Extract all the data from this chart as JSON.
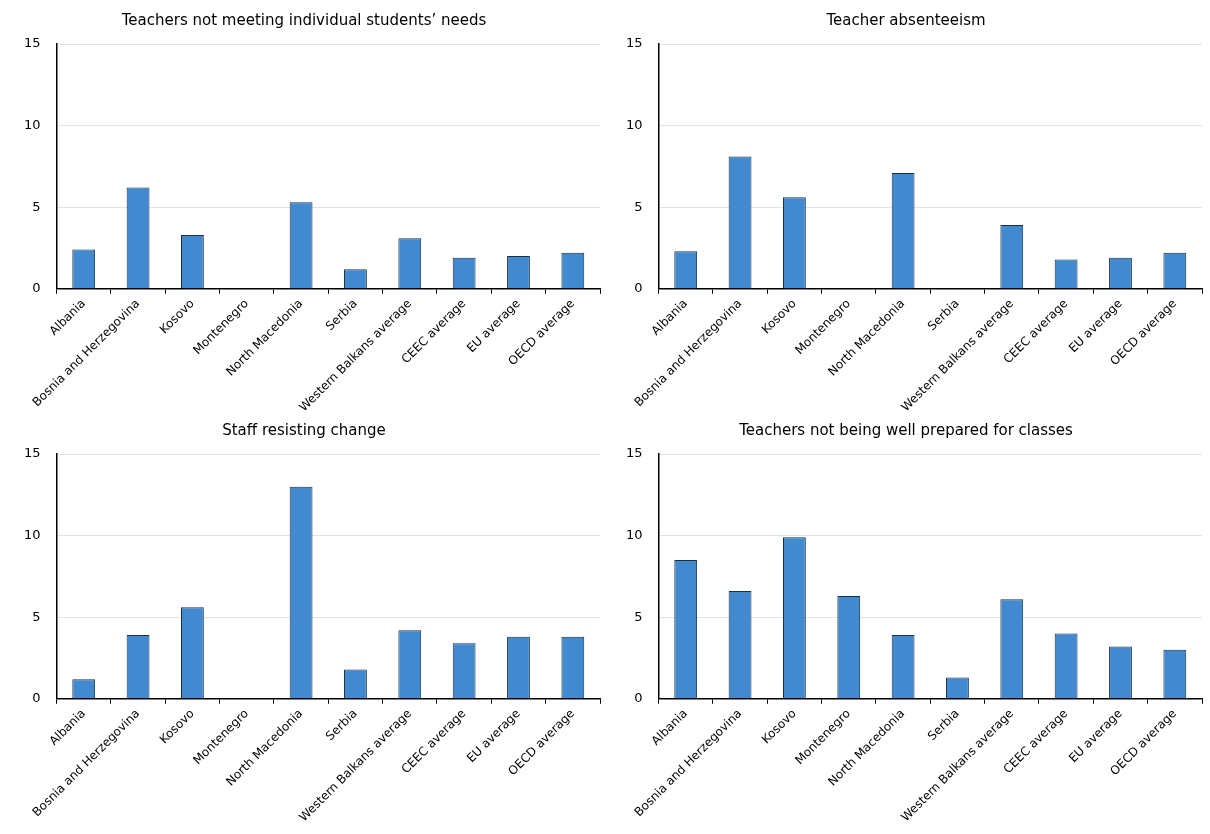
{
  "chart_data": [
    {
      "type": "bar",
      "title": "Teachers not meeting individual students’ needs",
      "categories": [
        "Albania",
        "Bosnia and Herzegovina",
        "Kosovo",
        "Montenegro",
        "North Macedonia",
        "Serbia",
        "Western Balkans average",
        "CEEC average",
        "EU average",
        "OECD average"
      ],
      "values": [
        2.4,
        6.2,
        3.3,
        null,
        5.3,
        1.2,
        3.1,
        1.9,
        2.0,
        2.2
      ],
      "color": "#418ad0",
      "ylim": [
        0,
        15
      ],
      "yticks": [
        0,
        5,
        10,
        15
      ],
      "grid": "y"
    },
    {
      "type": "bar",
      "title": "Teacher absenteeism",
      "categories": [
        "Albania",
        "Bosnia and Herzegovina",
        "Kosovo",
        "Montenegro",
        "North Macedonia",
        "Serbia",
        "Western Balkans average",
        "CEEC average",
        "EU average",
        "OECD average"
      ],
      "values": [
        2.3,
        8.1,
        5.6,
        null,
        7.1,
        null,
        3.9,
        1.8,
        1.9,
        2.2
      ],
      "color": "#418ad0",
      "ylim": [
        0,
        15
      ],
      "yticks": [
        0,
        5,
        10,
        15
      ],
      "grid": "y"
    },
    {
      "type": "bar",
      "title": "Staff resisting change",
      "categories": [
        "Albania",
        "Bosnia and Herzegovina",
        "Kosovo",
        "Montenegro",
        "North Macedonia",
        "Serbia",
        "Western Balkans average",
        "CEEC average",
        "EU average",
        "OECD average"
      ],
      "values": [
        1.2,
        3.9,
        5.6,
        null,
        13.0,
        1.8,
        4.2,
        3.4,
        3.8,
        3.8
      ],
      "color": "#418ad0",
      "ylim": [
        0,
        15
      ],
      "yticks": [
        0,
        5,
        10,
        15
      ],
      "grid": "y"
    },
    {
      "type": "bar",
      "title": "Teachers not being well prepared for classes",
      "categories": [
        "Albania",
        "Bosnia and Herzegovina",
        "Kosovo",
        "Montenegro",
        "North Macedonia",
        "Serbia",
        "Western Balkans average",
        "CEEC average",
        "EU average",
        "OECD average"
      ],
      "values": [
        8.5,
        6.6,
        9.9,
        6.3,
        3.9,
        1.3,
        6.1,
        4.0,
        3.2,
        3.0
      ],
      "color": "#418ad0",
      "ylim": [
        0,
        15
      ],
      "yticks": [
        0,
        5,
        10,
        15
      ],
      "grid": "y"
    }
  ]
}
